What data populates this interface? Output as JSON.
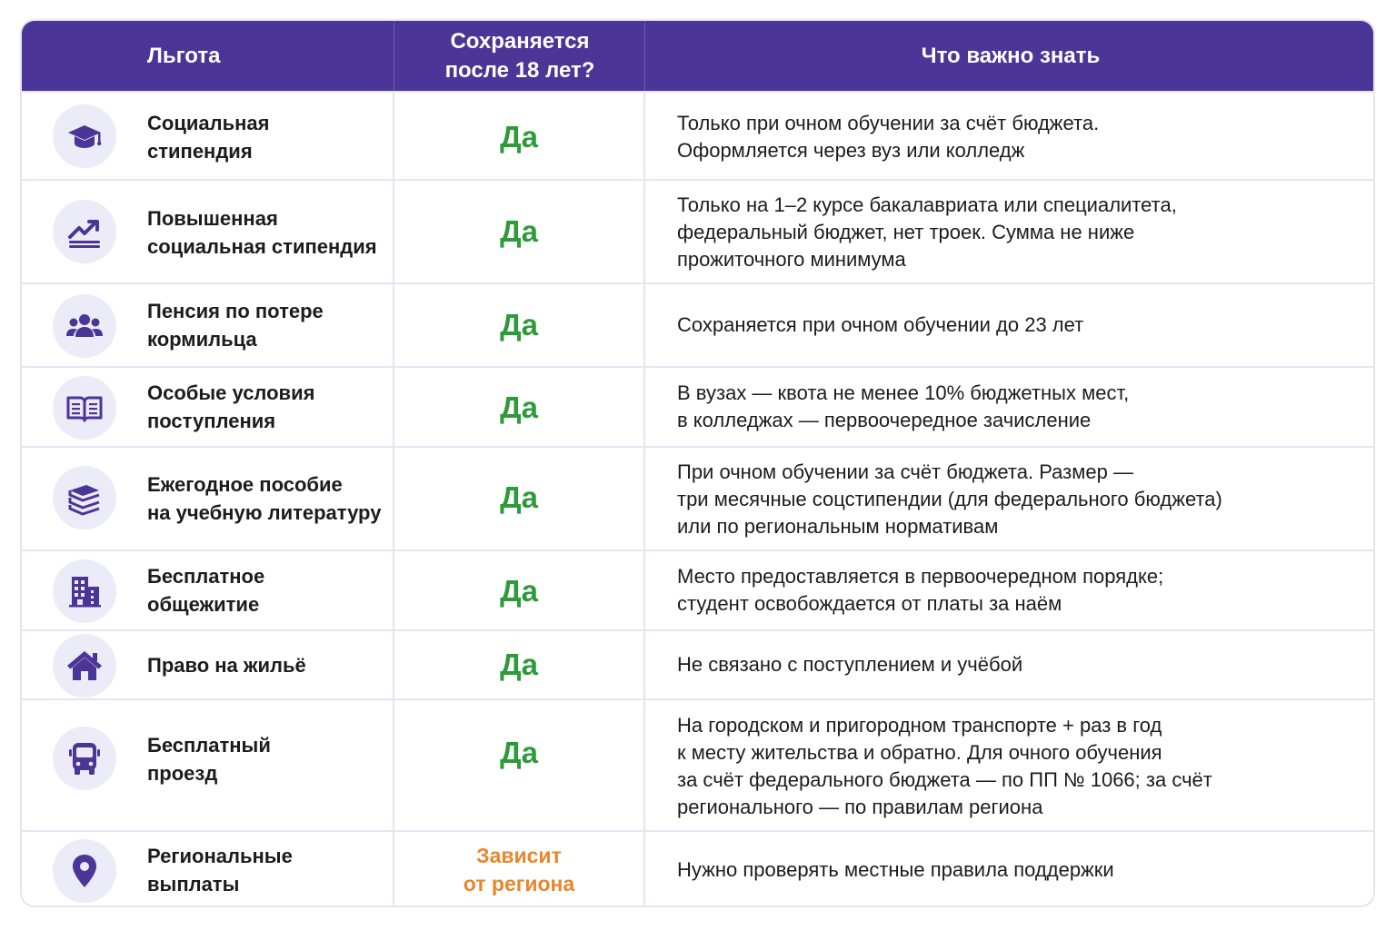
{
  "header": {
    "col1": "Льгота",
    "col2": "Сохраняется\nпосле 18 лет?",
    "col3": "Что важно знать"
  },
  "rows": [
    {
      "icon": "graduation-cap-icon",
      "name": "Социальная\nстипендия",
      "status": "Да",
      "note": "Только при очном обучении за счёт бюджета.\nОформляется через вуз или колледж"
    },
    {
      "icon": "trending-up-chart-icon",
      "name": "Повышенная\nсоциальная стипендия",
      "status": "Да",
      "note": "Только на 1–2 курсе бакалавриата или специалитета,\nфедеральный бюджет, нет троек. Сумма не ниже\nпрожиточного минимума"
    },
    {
      "icon": "people-group-icon",
      "name": "Пенсия по потере\nкормильца",
      "status": "Да",
      "note": "Сохраняется при очном обучении до 23 лет"
    },
    {
      "icon": "open-book-icon",
      "name": "Особые условия\nпоступления",
      "status": "Да",
      "note": "В вузах — квота не менее 10% бюджетных мест,\nв колледжах — первоочередное зачисление"
    },
    {
      "icon": "book-stack-icon",
      "name": "Ежегодное пособие\nна учебную литературу",
      "status": "Да",
      "note": "При очном обучении за счёт бюджета. Размер —\nтри месячные соцстипендии (для федерального бюджета)\nили по региональным нормативам"
    },
    {
      "icon": "building-icon",
      "name": "Бесплатное\nобщежитие",
      "status": "Да",
      "note": "Место предоставляется в первоочередном порядке;\nстудент освобождается от платы за наём"
    },
    {
      "icon": "house-icon",
      "name": "Право на жильё",
      "status": "Да",
      "note": "Не связано с поступлением и учёбой"
    },
    {
      "icon": "bus-icon",
      "name": "Бесплатный\nпроезд",
      "status": "Да",
      "note": "На городском и пригородном транспорте + раз в год\nк месту жительства и обратно. Для очного обучения\nза счёт федерального бюджета — по ПП № 1066; за счёт\nрегионального — по правилам региона"
    },
    {
      "icon": "map-pin-icon",
      "name": "Региональные\nвыплаты",
      "status": "Зависит\nот региона",
      "note": "Нужно проверять местные правила поддержки"
    }
  ],
  "colors": {
    "header_bg": "#4b3596",
    "icon": "#4b3596",
    "icon_bg": "#ecebf8",
    "yes": "#2e9b3a",
    "depends": "#e8862a",
    "border": "#e6e4f3"
  }
}
